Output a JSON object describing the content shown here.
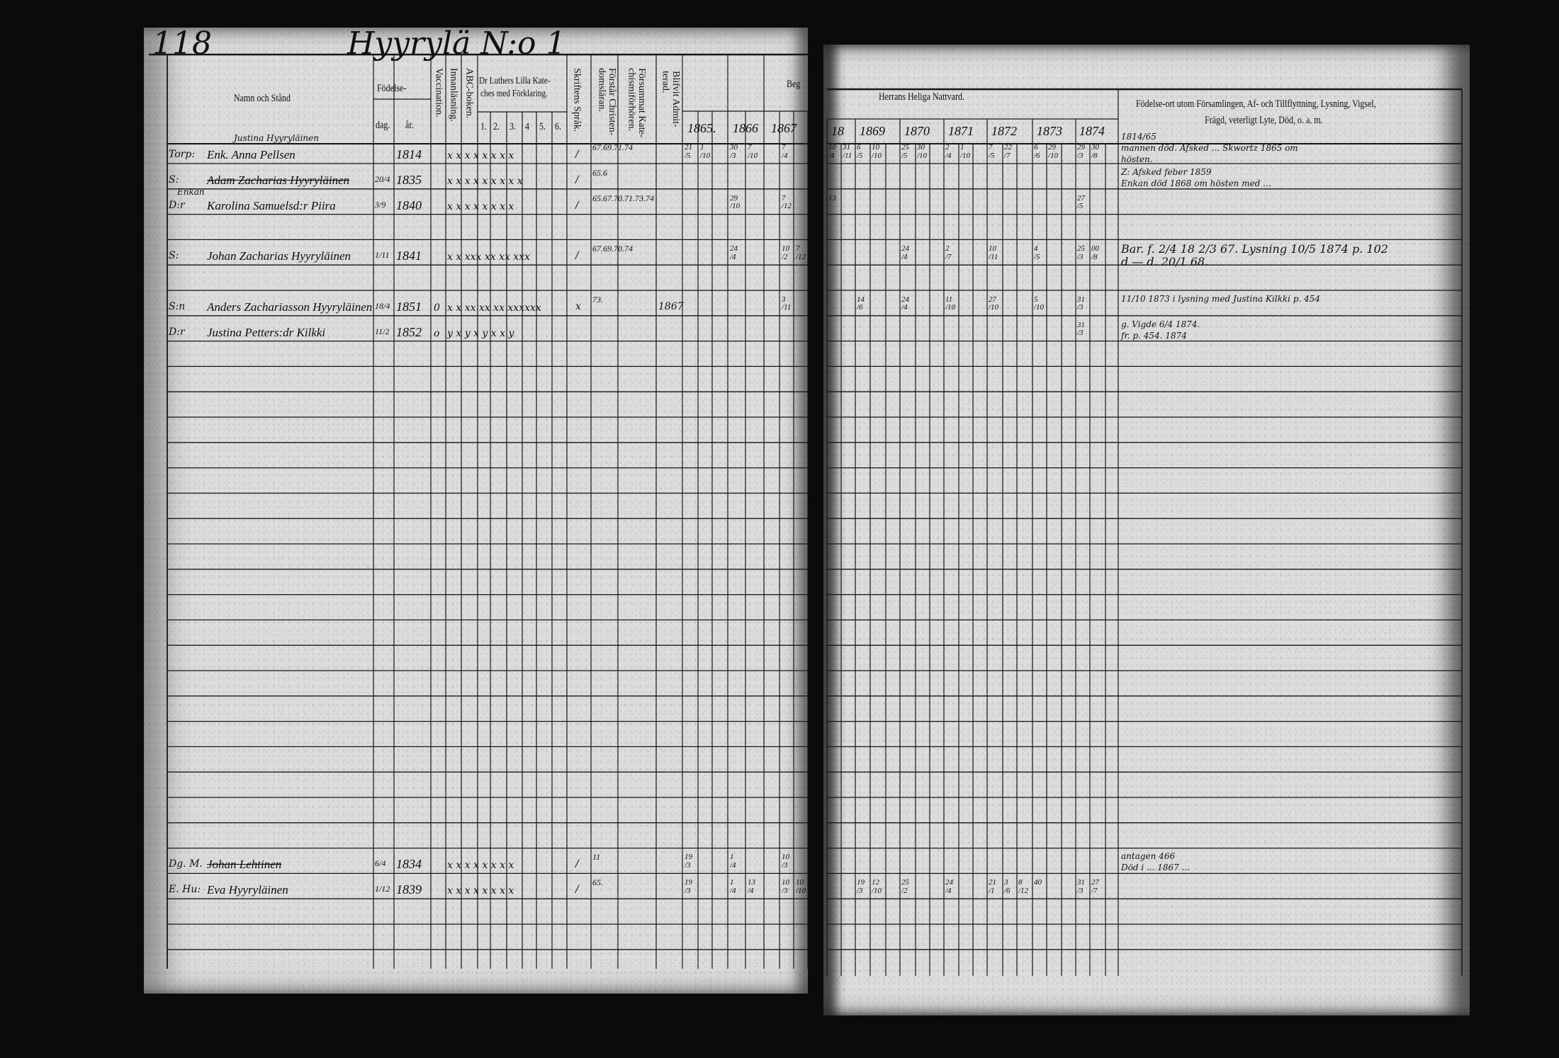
{
  "left_page": {
    "page_number": "118",
    "village": "Hyyrylä N:o 1",
    "headers": {
      "name": "Namn och Stånd",
      "birth": "Födelse-",
      "day": "dag.",
      "year": "år.",
      "vaccination": "Vaccination.",
      "reading": "Innanläsning.",
      "abc": "ABC-boken.",
      "catechism_1": "Dr Luthers Lilla Kate-",
      "catechism_2": "ches med Förklaring.",
      "cat_parts": [
        "1.",
        "2.",
        "3.",
        "4",
        "5.",
        "6."
      ],
      "scripture": "Skriftens Språk.",
      "understands": "Förstår Christen-domsläran.",
      "missed": "Försummat Kate-chismiförhören.",
      "admitted": "Blifvit Admit-terad.",
      "communion_begin": "Beg",
      "years": [
        "1865.",
        "1866",
        "1867"
      ]
    },
    "entries": [
      {
        "annotation": "Justina Hyyryläinen",
        "prefix": "Torp:",
        "name": "Enk. Anna Pellsen",
        "struck": false,
        "day": "",
        "year": "1814",
        "vacc": "",
        "marks": "x x x x x x x x",
        "scripture": "/",
        "missed": "67.69.71.74",
        "admitted": "",
        "comm": [
          "21/5",
          "1/10",
          "",
          "30/3",
          "7/10",
          "",
          "7/4",
          "",
          ""
        ]
      },
      {
        "annotation": "",
        "prefix": "S:",
        "name": "Adam Zacharias Hyyryläinen",
        "struck": true,
        "day": "20/4",
        "year": "1835",
        "vacc": "",
        "marks": "x x x x x x x x x",
        "scripture": "/",
        "missed": "65.6",
        "admitted": "",
        "comm": [
          "",
          "",
          "",
          "",
          "",
          "",
          "",
          "",
          ""
        ]
      },
      {
        "annotation": "Enkan",
        "prefix": "D:r",
        "name": "Karolina Samuelsd:r Piira",
        "struck": false,
        "day": "3/9",
        "year": "1840",
        "vacc": "",
        "marks": "x x x x x x x x",
        "scripture": "/",
        "missed": "65.67.70.71.73.74",
        "admitted": "",
        "comm": [
          "",
          "",
          "",
          "29/10",
          "",
          "",
          "7/12",
          "",
          ""
        ]
      },
      {
        "annotation": "",
        "prefix": "S:",
        "name": "Johan Zacharias Hyyryläinen",
        "struck": false,
        "day": "1/11",
        "year": "1841",
        "vacc": "",
        "marks": "x x xxx xx xx xxx",
        "scripture": "/",
        "missed": "67.69.70.74",
        "admitted": "",
        "comm": [
          "",
          "",
          "",
          "24/4",
          "",
          "",
          "10/2",
          "7/12",
          ""
        ]
      },
      {
        "annotation": "",
        "prefix": "S:n",
        "name": "Anders Zachariasson Hyyryläinen",
        "struck": false,
        "day": "18/4",
        "year": "1851",
        "vacc": "0",
        "marks": "x x xx xx xx xxxxxx",
        "scripture": "x",
        "missed": "73.",
        "admitted": "1867",
        "comm": [
          "",
          "",
          "",
          "",
          "",
          "",
          "3/11",
          "",
          ""
        ]
      },
      {
        "annotation": "",
        "prefix": "D:r",
        "name": "Justina Petters:dr Kilkki",
        "struck": false,
        "day": "11/2",
        "year": "1852",
        "vacc": "o",
        "marks": "y x y x y x x y",
        "scripture": "",
        "missed": "",
        "admitted": "",
        "comm": [
          "",
          "",
          "",
          "",
          "",
          "",
          "",
          "",
          ""
        ]
      },
      {
        "annotation": "",
        "prefix": "Dg. M.",
        "name": "Johan Lehtinen",
        "struck": true,
        "day": "6/4",
        "year": "1834",
        "vacc": "",
        "marks": "x x x x x x x x",
        "scripture": "/",
        "missed": "11",
        "admitted": "",
        "comm": [
          "19/3",
          "",
          "",
          "1/4",
          "",
          "",
          "10/3",
          "",
          ""
        ]
      },
      {
        "annotation": "",
        "prefix": "E. Hu:",
        "name": "Eva Hyyryläinen",
        "struck": false,
        "day": "1/12",
        "year": "1839",
        "vacc": "",
        "marks": "x x x x x x x x",
        "scripture": "/",
        "missed": "65.",
        "admitted": "",
        "comm": [
          "19/3",
          "",
          "",
          "1/4",
          "13/4",
          "",
          "10/3",
          "10/10",
          ""
        ]
      }
    ]
  },
  "right_page": {
    "communion_header": "Herrans Heliga Nattvard.",
    "years": [
      "18",
      "1869",
      "1870",
      "1871",
      "1872",
      "1873",
      "1874"
    ],
    "remarks_header_1": "Födelse-ort utom Församlingen, Af- och Tillflyttning, Lysning, Vigsel,",
    "remarks_header_2": "Frägd, veterligt Lyte, Död, o. a. m.",
    "rows": [
      {
        "comm": [
          "10/4",
          "31/11",
          "6/5",
          "10/10",
          "",
          "25/5",
          "30/10",
          "",
          "2/4",
          "1/10",
          "",
          "7/5",
          "22/7",
          "",
          "6/6",
          "29/10",
          "",
          "29/3",
          "30/8",
          ""
        ],
        "remarks": [
          "1814/65",
          "mannen död. Afsked ... Skwortz 1865 om",
          "hösten."
        ]
      },
      {
        "comm": [
          "",
          "",
          "",
          "",
          "",
          "",
          "",
          "",
          "",
          "",
          "",
          "",
          "",
          "",
          "",
          "",
          "",
          "",
          "",
          ""
        ],
        "remarks": [
          "Z: Afsked feber 1859",
          "Enkan död 1868 om hösten med ..."
        ]
      },
      {
        "comm": [
          "13",
          "",
          "",
          "",
          "",
          "",
          "",
          "",
          "",
          "",
          "",
          "",
          "",
          "",
          "",
          "",
          "",
          "27/5",
          "",
          ""
        ],
        "remarks": []
      },
      {
        "comm": [
          "",
          "",
          "",
          "",
          "",
          "24/4",
          "",
          "",
          "2/7",
          "",
          "",
          "10/11",
          "",
          "",
          "4/5",
          "",
          "",
          "25/3",
          "00/8",
          ""
        ],
        "remarks": [
          "Bar. f. 2/4 18 2/3 67. Lysning 10/5 1874 p. 102",
          "d — d. 20/1 68."
        ]
      },
      {
        "comm": [
          "",
          "",
          "14/6",
          "",
          "",
          "24/4",
          "",
          "",
          "11/10",
          "",
          "",
          "27/10",
          "",
          "",
          "5/10",
          "",
          "",
          "31/3",
          "",
          ""
        ],
        "remarks": [
          "11/10 1873 i lysning med Justina Kilkki p. 454"
        ]
      },
      {
        "comm": [
          "",
          "",
          "",
          "",
          "",
          "",
          "",
          "",
          "",
          "",
          "",
          "",
          "",
          "",
          "",
          "",
          "",
          "31/3",
          "",
          ""
        ],
        "remarks": [
          "g. Vigde 6/4 1874.",
          "fr. p. 454. 1874"
        ]
      },
      {
        "comm": [
          "",
          "",
          "",
          "",
          "",
          "",
          "",
          "",
          "",
          "",
          "",
          "",
          "",
          "",
          "",
          "",
          "",
          "",
          "",
          ""
        ],
        "remarks": [
          "antagen 466",
          "Död i ... 1867 ..."
        ]
      },
      {
        "comm": [
          "",
          "",
          "19/3",
          "12/10",
          "",
          "25/2",
          "",
          "",
          "24/4",
          "",
          "",
          "21/1",
          "3/6",
          "8/12",
          "40",
          "",
          "",
          "31/3",
          "27/7",
          ""
        ],
        "remarks": []
      }
    ]
  },
  "colors": {
    "paper": "#dcdcdc",
    "ink": "#111111",
    "background": "#0b0b0b"
  }
}
